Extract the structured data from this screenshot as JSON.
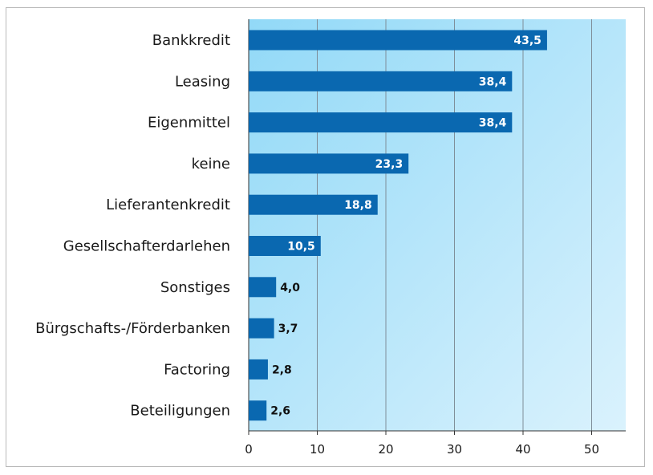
{
  "chart_data": {
    "type": "bar",
    "orientation": "horizontal",
    "categories": [
      "Bankkredit",
      "Leasing",
      "Eigenmittel",
      "keine",
      "Lieferantenkredit",
      "Gesellschafterdarlehen",
      "Sonstiges",
      "Bürgschafts-/Förderbanken",
      "Factoring",
      "Beteiligungen"
    ],
    "values": [
      43.5,
      38.4,
      38.4,
      23.3,
      18.8,
      10.5,
      4.0,
      3.7,
      2.8,
      2.6
    ],
    "value_labels": [
      "43,5",
      "38,4",
      "38,4",
      "23,3",
      "18,8",
      "10,5",
      "4,0",
      "3,7",
      "2,8",
      "2,6"
    ],
    "title": "",
    "xlabel": "",
    "ylabel": "",
    "xlim": [
      0,
      55
    ],
    "xticks": [
      0,
      10,
      20,
      30,
      40,
      50
    ],
    "xtick_labels": [
      "0",
      "10",
      "20",
      "30",
      "40",
      "50"
    ],
    "grid": "vertical",
    "legend": "none",
    "colors": {
      "bar": "#0a68b0",
      "background_light": "#daf2fd",
      "background_dark": "#92d9f7",
      "gridline": "#7f8e99"
    }
  }
}
